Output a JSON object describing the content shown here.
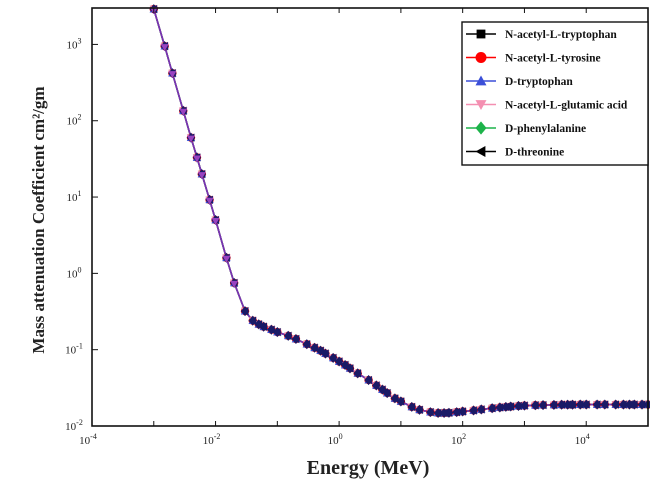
{
  "chart_data": {
    "type": "line",
    "xlabel": "Energy (MeV)",
    "ylabel": "Mass attenuation Coefficient cm²/gm",
    "x_scale": "log",
    "y_scale": "log",
    "xlim": [
      0.0001,
      100000
    ],
    "ylim": [
      0.01,
      3000
    ],
    "x_ticks": [
      {
        "value": 0.0001,
        "base": "10",
        "exp": "-4"
      },
      {
        "value": 0.01,
        "base": "10",
        "exp": "-2"
      },
      {
        "value": 1,
        "base": "10",
        "exp": "0"
      },
      {
        "value": 100,
        "base": "10",
        "exp": "2"
      },
      {
        "value": 10000,
        "base": "10",
        "exp": "4"
      }
    ],
    "y_ticks": [
      {
        "value": 0.01,
        "base": "10",
        "exp": "-2"
      },
      {
        "value": 0.1,
        "base": "10",
        "exp": "-1"
      },
      {
        "value": 1,
        "base": "10",
        "exp": "0"
      },
      {
        "value": 10,
        "base": "10",
        "exp": "1"
      },
      {
        "value": 100,
        "base": "10",
        "exp": "2"
      },
      {
        "value": 1000,
        "base": "10",
        "exp": "3"
      }
    ],
    "grid": false,
    "legend_position": "top-right",
    "x": [
      0.001,
      0.0015,
      0.002,
      0.003,
      0.004,
      0.005,
      0.006,
      0.008,
      0.01,
      0.015,
      0.02,
      0.03,
      0.04,
      0.05,
      0.06,
      0.08,
      0.1,
      0.15,
      0.2,
      0.3,
      0.4,
      0.5,
      0.6,
      0.8,
      1,
      1.25,
      1.5,
      2,
      3,
      4,
      5,
      6,
      8,
      10,
      15,
      20,
      30,
      40,
      50,
      60,
      80,
      100,
      150,
      200,
      300,
      400,
      500,
      600,
      800,
      1000,
      1500,
      2000,
      3000,
      4000,
      5000,
      6000,
      8000,
      10000,
      15000,
      20000,
      30000,
      40000,
      50000,
      60000,
      80000,
      100000
    ],
    "series": [
      {
        "name": "N-acetyl-L-tryptophan",
        "marker": "square",
        "color": "#000000",
        "values": [
          2900,
          950,
          420,
          135,
          60,
          33,
          20,
          9.2,
          5.0,
          1.6,
          0.75,
          0.32,
          0.24,
          0.215,
          0.2,
          0.183,
          0.17,
          0.152,
          0.138,
          0.118,
          0.106,
          0.097,
          0.089,
          0.078,
          0.07,
          0.063,
          0.057,
          0.049,
          0.04,
          0.034,
          0.03,
          0.027,
          0.023,
          0.021,
          0.0178,
          0.0163,
          0.0152,
          0.0148,
          0.0148,
          0.0149,
          0.0152,
          0.0155,
          0.016,
          0.0165,
          0.0171,
          0.0175,
          0.0178,
          0.018,
          0.0183,
          0.0185,
          0.0187,
          0.0188,
          0.0189,
          0.019,
          0.019,
          0.019,
          0.0191,
          0.0191,
          0.0191,
          0.0191,
          0.0191,
          0.0191,
          0.0191,
          0.0191,
          0.0191,
          0.0191
        ]
      },
      {
        "name": "N-acetyl-L-tyrosine",
        "marker": "circle",
        "color": "#ff0000",
        "values": [
          2900,
          950,
          420,
          135,
          60,
          33,
          20,
          9.2,
          5.0,
          1.6,
          0.75,
          0.32,
          0.24,
          0.215,
          0.2,
          0.183,
          0.17,
          0.152,
          0.138,
          0.118,
          0.106,
          0.097,
          0.089,
          0.078,
          0.07,
          0.063,
          0.057,
          0.049,
          0.04,
          0.034,
          0.03,
          0.027,
          0.023,
          0.021,
          0.0178,
          0.0163,
          0.0152,
          0.0148,
          0.0148,
          0.0149,
          0.0152,
          0.0155,
          0.016,
          0.0165,
          0.0171,
          0.0175,
          0.0178,
          0.018,
          0.0183,
          0.0185,
          0.0187,
          0.0188,
          0.0189,
          0.019,
          0.019,
          0.019,
          0.0191,
          0.0191,
          0.0191,
          0.0191,
          0.0191,
          0.0191,
          0.0191,
          0.0191,
          0.0191,
          0.0191
        ]
      },
      {
        "name": "D-tryptophan",
        "marker": "triangle-up",
        "color": "#3b4fd8",
        "values": [
          2900,
          950,
          420,
          135,
          60,
          33,
          20,
          9.2,
          5.0,
          1.6,
          0.75,
          0.32,
          0.24,
          0.215,
          0.2,
          0.183,
          0.17,
          0.152,
          0.138,
          0.118,
          0.106,
          0.097,
          0.089,
          0.078,
          0.07,
          0.063,
          0.057,
          0.049,
          0.04,
          0.034,
          0.03,
          0.027,
          0.023,
          0.021,
          0.0178,
          0.0163,
          0.0152,
          0.0148,
          0.0148,
          0.0149,
          0.0152,
          0.0155,
          0.016,
          0.0165,
          0.0171,
          0.0175,
          0.0178,
          0.018,
          0.0183,
          0.0185,
          0.0187,
          0.0188,
          0.0189,
          0.019,
          0.019,
          0.019,
          0.0191,
          0.0191,
          0.0191,
          0.0191,
          0.0191,
          0.0191,
          0.0191,
          0.0191,
          0.0191,
          0.0191
        ]
      },
      {
        "name": "N-acetyl-L-glutamic acid",
        "marker": "triangle-down",
        "color": "#f48fb1",
        "values": [
          2900,
          950,
          420,
          135,
          60,
          33,
          20,
          9.2,
          5.0,
          1.6,
          0.75,
          0.32,
          0.24,
          0.215,
          0.2,
          0.183,
          0.17,
          0.152,
          0.138,
          0.118,
          0.106,
          0.097,
          0.089,
          0.078,
          0.07,
          0.063,
          0.057,
          0.049,
          0.04,
          0.034,
          0.03,
          0.027,
          0.023,
          0.021,
          0.0178,
          0.0163,
          0.0152,
          0.0148,
          0.0148,
          0.0149,
          0.0152,
          0.0155,
          0.016,
          0.0165,
          0.0171,
          0.0175,
          0.0178,
          0.018,
          0.0183,
          0.0185,
          0.0187,
          0.0188,
          0.0189,
          0.019,
          0.019,
          0.019,
          0.0191,
          0.0191,
          0.0191,
          0.0191,
          0.0191,
          0.0191,
          0.0191,
          0.0191,
          0.0191,
          0.0191
        ]
      },
      {
        "name": "D-phenylalanine",
        "marker": "diamond",
        "color": "#1db34a",
        "values": [
          2900,
          950,
          420,
          135,
          60,
          33,
          20,
          9.2,
          5.0,
          1.6,
          0.75,
          0.32,
          0.24,
          0.215,
          0.2,
          0.183,
          0.17,
          0.152,
          0.138,
          0.118,
          0.106,
          0.097,
          0.089,
          0.078,
          0.07,
          0.063,
          0.057,
          0.049,
          0.04,
          0.034,
          0.03,
          0.027,
          0.023,
          0.021,
          0.0178,
          0.0163,
          0.0152,
          0.0148,
          0.0148,
          0.0149,
          0.0152,
          0.0155,
          0.016,
          0.0165,
          0.0171,
          0.0175,
          0.0178,
          0.018,
          0.0183,
          0.0185,
          0.0187,
          0.0188,
          0.0189,
          0.019,
          0.019,
          0.019,
          0.0191,
          0.0191,
          0.0191,
          0.0191,
          0.0191,
          0.0191,
          0.0191,
          0.0191,
          0.0191,
          0.0191
        ]
      },
      {
        "name": "D-threonine",
        "marker": "triangle-left",
        "color": "#000000",
        "values": [
          2900,
          950,
          420,
          135,
          60,
          33,
          20,
          9.2,
          5.0,
          1.6,
          0.75,
          0.32,
          0.24,
          0.215,
          0.2,
          0.183,
          0.17,
          0.152,
          0.138,
          0.118,
          0.106,
          0.097,
          0.089,
          0.078,
          0.07,
          0.063,
          0.057,
          0.049,
          0.04,
          0.034,
          0.03,
          0.027,
          0.023,
          0.021,
          0.0178,
          0.0163,
          0.0152,
          0.0148,
          0.0148,
          0.0149,
          0.0152,
          0.0155,
          0.016,
          0.0165,
          0.0171,
          0.0175,
          0.0178,
          0.018,
          0.0183,
          0.0185,
          0.0187,
          0.0188,
          0.0189,
          0.019,
          0.019,
          0.019,
          0.0191,
          0.0191,
          0.0191,
          0.0191,
          0.0191,
          0.0191,
          0.0191,
          0.0191,
          0.0191,
          0.0191
        ]
      }
    ],
    "overlay_marker_color": "#1a1a66",
    "overlay_line_color": "#7a2fb5"
  }
}
